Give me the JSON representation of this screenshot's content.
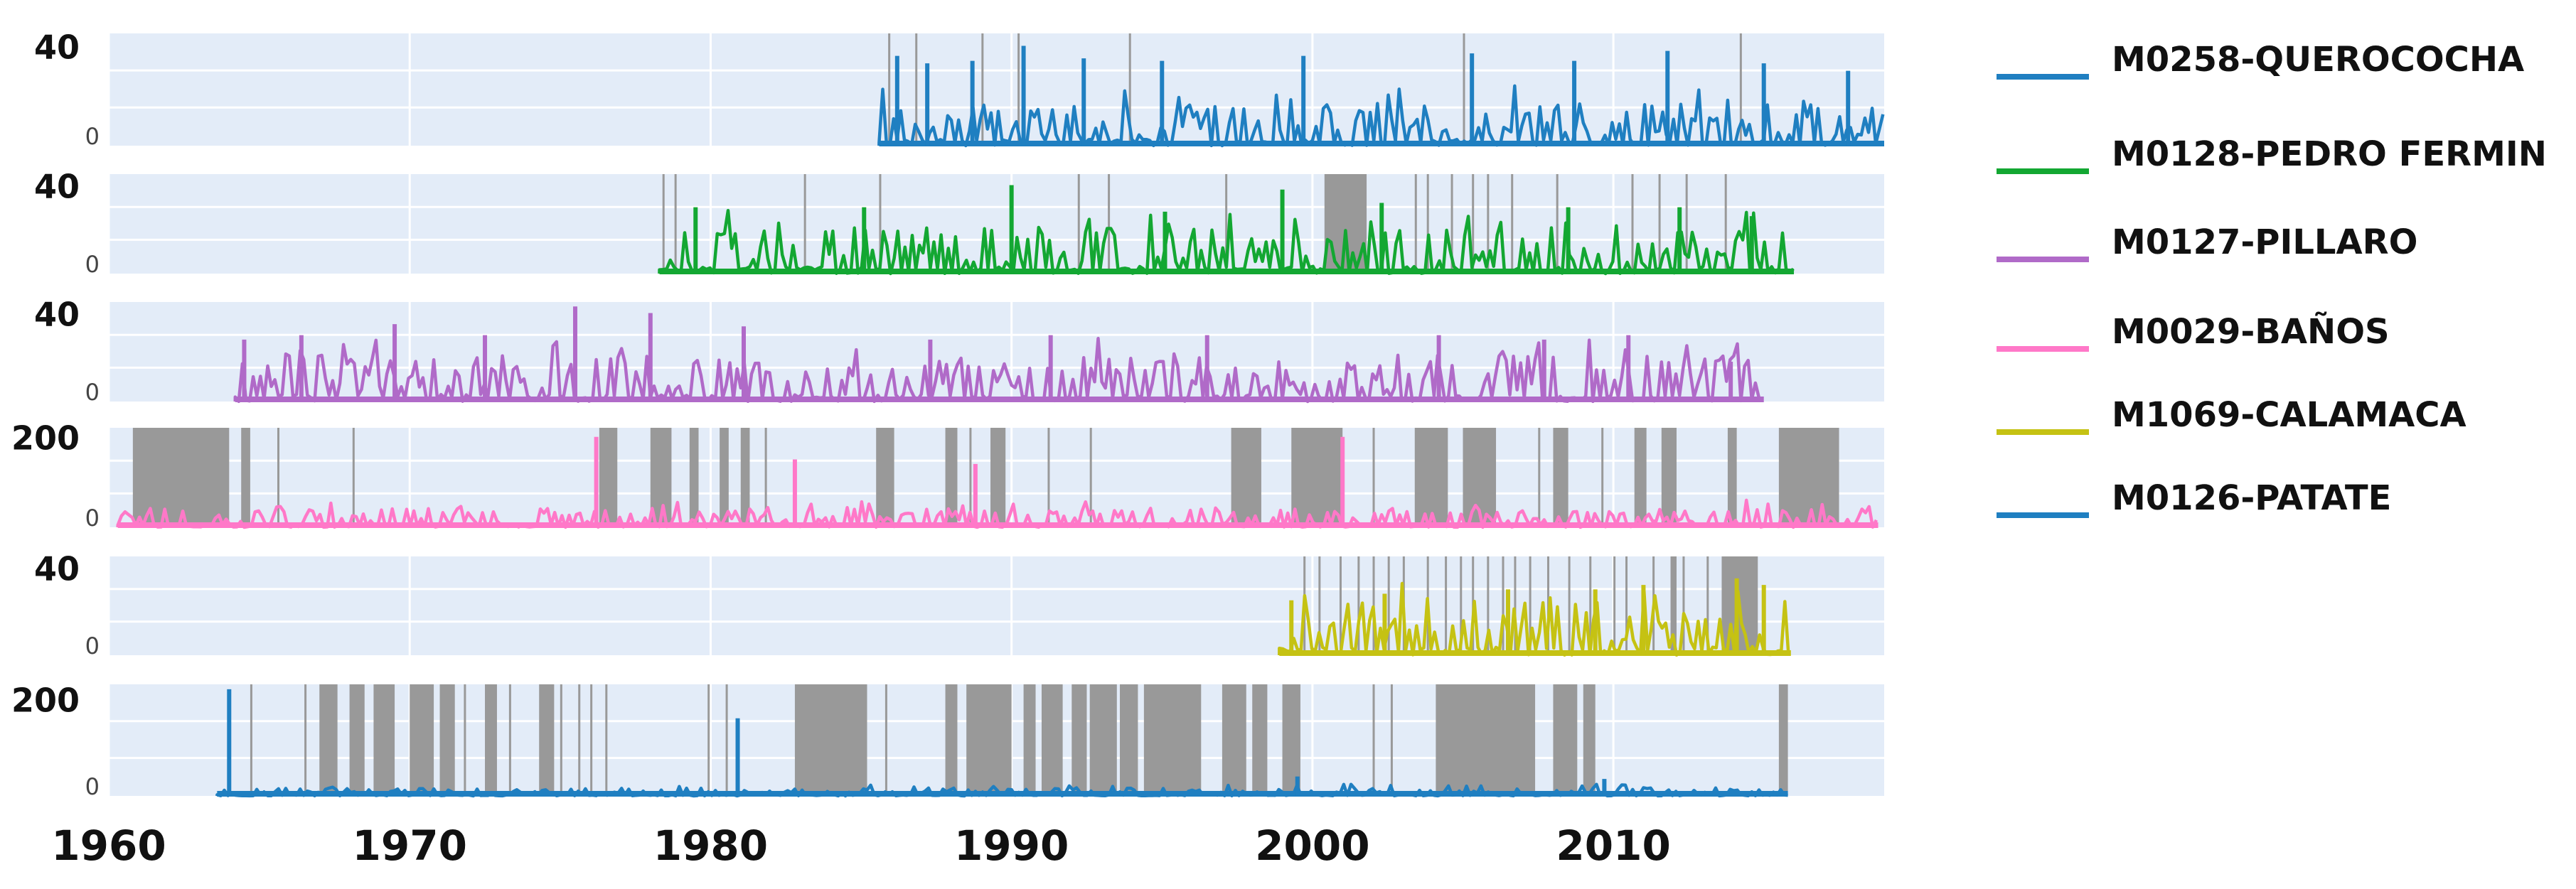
{
  "chart_data": {
    "type": "line",
    "xlim": [
      1960,
      2019
    ],
    "x_ticks": [
      "1960",
      "1970",
      "1980",
      "1990",
      "2000",
      "2010"
    ],
    "x_tick_values": [
      1960,
      1970,
      1980,
      1990,
      2000,
      2010
    ],
    "grid": true,
    "legend_position": "right",
    "gap_color": "#999999",
    "panel_background": "#e3ecf8",
    "series": [
      {
        "name": "M0258-QUEROCOCHA",
        "color": "#1f7fc1",
        "y_ticks": [
          "40",
          "0"
        ],
        "y_tick_values": [
          40,
          0
        ],
        "ylim": [
          0,
          45
        ],
        "start": 1985.6,
        "end": 2019.0,
        "typical": 8,
        "spikes": [
          [
            1986.2,
            36
          ],
          [
            1987.2,
            33
          ],
          [
            1988.7,
            34
          ],
          [
            1990.4,
            40
          ],
          [
            1992.4,
            35
          ],
          [
            1995.0,
            34
          ],
          [
            1999.7,
            36
          ],
          [
            2005.3,
            37
          ],
          [
            2008.7,
            34
          ],
          [
            2011.8,
            38
          ],
          [
            2015.0,
            33
          ],
          [
            2017.8,
            30
          ]
        ],
        "gaps": [
          [
            1985.9,
            1985.96
          ],
          [
            1986.8,
            1986.85
          ],
          [
            1989.0,
            1989.06
          ],
          [
            1990.2,
            1990.25
          ],
          [
            1993.9,
            1993.95
          ],
          [
            2005.0,
            2005.06
          ],
          [
            2014.2,
            2014.25
          ]
        ]
      },
      {
        "name": "M0128-PEDRO FERMIN",
        "color": "#13a732",
        "y_ticks": [
          "40",
          "0"
        ],
        "y_tick_values": [
          40,
          0
        ],
        "ylim": [
          0,
          45
        ],
        "start": 1978.3,
        "end": 2016.0,
        "typical": 10,
        "spikes": [
          [
            1979.5,
            30
          ],
          [
            1985.1,
            30
          ],
          [
            1990.0,
            40
          ],
          [
            1995.1,
            28
          ],
          [
            1999.0,
            38
          ],
          [
            2002.3,
            32
          ],
          [
            2008.5,
            30
          ],
          [
            2012.2,
            30
          ],
          [
            2014.6,
            26
          ]
        ],
        "gaps": [
          [
            1978.4,
            1978.45
          ],
          [
            1978.8,
            1978.86
          ],
          [
            1983.1,
            1983.15
          ],
          [
            1985.6,
            1985.66
          ],
          [
            1992.2,
            1992.25
          ],
          [
            1993.2,
            1993.25
          ],
          [
            1997.1,
            1997.16
          ],
          [
            2000.4,
            2001.8
          ],
          [
            2003.4,
            2003.45
          ],
          [
            2003.8,
            2003.85
          ],
          [
            2004.6,
            2004.65
          ],
          [
            2005.3,
            2005.35
          ],
          [
            2005.8,
            2005.85
          ],
          [
            2006.6,
            2006.65
          ],
          [
            2008.1,
            2008.15
          ],
          [
            2010.6,
            2010.65
          ],
          [
            2011.5,
            2011.55
          ],
          [
            2012.4,
            2012.45
          ],
          [
            2013.7,
            2013.75
          ]
        ]
      },
      {
        "name": "M0127-PILLARO",
        "color": "#b06ac8",
        "y_ticks": [
          "40",
          "0"
        ],
        "y_tick_values": [
          40,
          0
        ],
        "ylim": [
          0,
          45
        ],
        "start": 1964.2,
        "end": 2015.0,
        "typical": 10,
        "spikes": [
          [
            1964.5,
            28
          ],
          [
            1966.4,
            30
          ],
          [
            1969.5,
            35
          ],
          [
            1972.5,
            30
          ],
          [
            1975.5,
            43
          ],
          [
            1978.0,
            40
          ],
          [
            1981.1,
            34
          ],
          [
            1987.3,
            28
          ],
          [
            1991.3,
            30
          ],
          [
            1996.5,
            30
          ],
          [
            2004.2,
            30
          ],
          [
            2007.7,
            28
          ],
          [
            2010.5,
            30
          ],
          [
            2013.9,
            18
          ]
        ],
        "gaps": []
      },
      {
        "name": "M0029-BAÑOS",
        "color": "#ff78c8",
        "y_ticks": [
          "200",
          "0"
        ],
        "y_tick_values": [
          200,
          0
        ],
        "ylim": [
          0,
          220
        ],
        "start": 1960.3,
        "end": 2018.8,
        "typical": 20,
        "spikes": [
          [
            1976.2,
            200
          ],
          [
            1982.8,
            150
          ],
          [
            1988.8,
            140
          ],
          [
            2001.0,
            200
          ]
        ],
        "gaps": [
          [
            1960.8,
            1964.0
          ],
          [
            1964.4,
            1964.7
          ],
          [
            1965.6,
            1965.65
          ],
          [
            1968.1,
            1968.15
          ],
          [
            1976.3,
            1976.9
          ],
          [
            1978.0,
            1978.7
          ],
          [
            1979.3,
            1979.6
          ],
          [
            1980.3,
            1980.6
          ],
          [
            1981.0,
            1981.3
          ],
          [
            1981.8,
            1981.85
          ],
          [
            1985.5,
            1986.1
          ],
          [
            1987.8,
            1988.2
          ],
          [
            1988.6,
            1988.65
          ],
          [
            1989.3,
            1989.8
          ],
          [
            1991.2,
            1991.25
          ],
          [
            1992.6,
            1992.65
          ],
          [
            1997.3,
            1998.3
          ],
          [
            1999.3,
            2001.0
          ],
          [
            2002.0,
            2002.05
          ],
          [
            2003.4,
            2004.5
          ],
          [
            2005.0,
            2006.1
          ],
          [
            2007.5,
            2007.55
          ],
          [
            2008.0,
            2008.5
          ],
          [
            2009.6,
            2009.65
          ],
          [
            2010.7,
            2011.1
          ],
          [
            2011.6,
            2012.1
          ],
          [
            2013.8,
            2014.1
          ],
          [
            2015.5,
            2017.5
          ]
        ]
      },
      {
        "name": "M1069-CALAMACA",
        "color": "#c5c213",
        "y_ticks": [
          "40",
          "0"
        ],
        "y_tick_values": [
          40,
          0
        ],
        "ylim": [
          0,
          45
        ],
        "start": 1998.9,
        "end": 2015.9,
        "typical": 12,
        "spikes": [
          [
            1999.3,
            25
          ],
          [
            2002.4,
            28
          ],
          [
            2006.5,
            30
          ],
          [
            2009.4,
            30
          ],
          [
            2011.0,
            32
          ],
          [
            2014.1,
            35
          ],
          [
            2015.0,
            32
          ]
        ],
        "gaps": [
          [
            1999.7,
            1999.75
          ],
          [
            2000.2,
            2000.25
          ],
          [
            2000.9,
            2000.95
          ],
          [
            2001.5,
            2001.55
          ],
          [
            2002.0,
            2002.05
          ],
          [
            2002.5,
            2002.55
          ],
          [
            2003.0,
            2003.05
          ],
          [
            2003.8,
            2003.85
          ],
          [
            2004.4,
            2004.45
          ],
          [
            2004.9,
            2004.95
          ],
          [
            2005.3,
            2005.35
          ],
          [
            2005.8,
            2005.85
          ],
          [
            2006.3,
            2006.35
          ],
          [
            2006.7,
            2006.75
          ],
          [
            2007.2,
            2007.25
          ],
          [
            2007.8,
            2007.85
          ],
          [
            2008.5,
            2008.55
          ],
          [
            2009.2,
            2009.25
          ],
          [
            2010.0,
            2010.05
          ],
          [
            2010.4,
            2010.45
          ],
          [
            2011.3,
            2011.35
          ],
          [
            2011.9,
            2012.1
          ],
          [
            2012.3,
            2012.35
          ],
          [
            2013.1,
            2013.15
          ],
          [
            2013.6,
            2014.8
          ]
        ]
      },
      {
        "name": "M0126-PATATE",
        "color": "#1f7fc1",
        "y_ticks": [
          "200",
          "0"
        ],
        "y_tick_values": [
          200,
          0
        ],
        "ylim": [
          0,
          230
        ],
        "start": 1963.6,
        "end": 2015.8,
        "typical": 8,
        "spikes": [
          [
            1964.0,
            220
          ],
          [
            1980.9,
            160
          ],
          [
            1999.5,
            40
          ],
          [
            2009.7,
            35
          ]
        ],
        "gaps": [
          [
            1964.7,
            1964.75
          ],
          [
            1966.5,
            1966.55
          ],
          [
            1967.0,
            1967.6
          ],
          [
            1968.0,
            1968.5
          ],
          [
            1968.8,
            1969.5
          ],
          [
            1970.0,
            1970.8
          ],
          [
            1971.0,
            1971.5
          ],
          [
            1971.8,
            1971.85
          ],
          [
            1972.5,
            1972.9
          ],
          [
            1973.3,
            1973.35
          ],
          [
            1974.3,
            1974.8
          ],
          [
            1975.0,
            1975.05
          ],
          [
            1975.6,
            1975.65
          ],
          [
            1976.0,
            1976.05
          ],
          [
            1976.5,
            1976.55
          ],
          [
            1979.9,
            1979.95
          ],
          [
            1980.5,
            1980.55
          ],
          [
            1982.8,
            1985.2
          ],
          [
            1985.8,
            1985.85
          ],
          [
            1987.8,
            1988.2
          ],
          [
            1988.5,
            1990.0
          ],
          [
            1990.4,
            1990.8
          ],
          [
            1991.0,
            1991.7
          ],
          [
            1992.0,
            1992.5
          ],
          [
            1992.6,
            1993.5
          ],
          [
            1993.6,
            1994.2
          ],
          [
            1994.4,
            1996.3
          ],
          [
            1997.0,
            1997.8
          ],
          [
            1998.0,
            1998.5
          ],
          [
            1999.0,
            1999.6
          ],
          [
            2002.0,
            2002.05
          ],
          [
            2002.6,
            2002.65
          ],
          [
            2004.1,
            2007.4
          ],
          [
            2008.0,
            2008.8
          ],
          [
            2009.0,
            2009.4
          ],
          [
            2015.5,
            2015.8
          ]
        ]
      }
    ]
  }
}
